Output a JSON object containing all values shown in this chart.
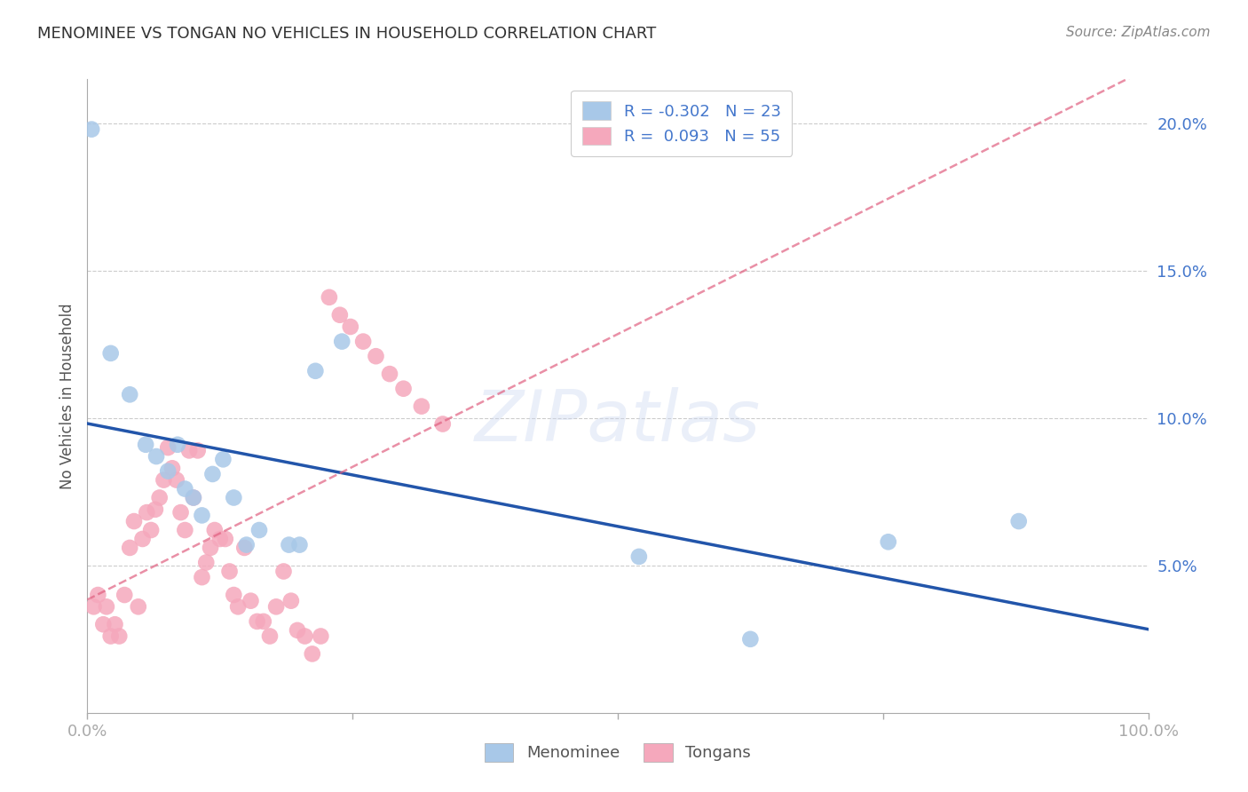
{
  "title": "MENOMINEE VS TONGAN NO VEHICLES IN HOUSEHOLD CORRELATION CHART",
  "source": "Source: ZipAtlas.com",
  "ylabel": "No Vehicles in Household",
  "xlim": [
    0.0,
    1.0
  ],
  "ylim": [
    0.0,
    0.215
  ],
  "yticks": [
    0.05,
    0.1,
    0.15,
    0.2
  ],
  "ytick_labels": [
    "5.0%",
    "10.0%",
    "15.0%",
    "20.0%"
  ],
  "xticks": [
    0.0,
    0.25,
    0.5,
    0.75,
    1.0
  ],
  "xtick_labels": [
    "0.0%",
    "",
    "",
    "",
    "100.0%"
  ],
  "menominee_R": -0.302,
  "menominee_N": 23,
  "tongan_R": 0.093,
  "tongan_N": 55,
  "menominee_color": "#a8c8e8",
  "tongan_color": "#f5a8bc",
  "menominee_line_color": "#2255aa",
  "tongan_line_color": "#e06080",
  "menominee_x": [
    0.004,
    0.022,
    0.04,
    0.055,
    0.065,
    0.076,
    0.085,
    0.092,
    0.1,
    0.108,
    0.118,
    0.128,
    0.138,
    0.15,
    0.162,
    0.19,
    0.2,
    0.215,
    0.24,
    0.52,
    0.625,
    0.755,
    0.878
  ],
  "menominee_y": [
    0.198,
    0.122,
    0.108,
    0.091,
    0.087,
    0.082,
    0.091,
    0.076,
    0.073,
    0.067,
    0.081,
    0.086,
    0.073,
    0.057,
    0.062,
    0.057,
    0.057,
    0.116,
    0.126,
    0.053,
    0.025,
    0.058,
    0.065
  ],
  "tongan_x": [
    0.006,
    0.01,
    0.015,
    0.018,
    0.022,
    0.026,
    0.03,
    0.035,
    0.04,
    0.044,
    0.048,
    0.052,
    0.056,
    0.06,
    0.064,
    0.068,
    0.072,
    0.076,
    0.08,
    0.084,
    0.088,
    0.092,
    0.096,
    0.1,
    0.104,
    0.108,
    0.112,
    0.116,
    0.12,
    0.125,
    0.13,
    0.134,
    0.138,
    0.142,
    0.148,
    0.154,
    0.16,
    0.166,
    0.172,
    0.178,
    0.185,
    0.192,
    0.198,
    0.205,
    0.212,
    0.22,
    0.228,
    0.238,
    0.248,
    0.26,
    0.272,
    0.285,
    0.298,
    0.315,
    0.335
  ],
  "tongan_y": [
    0.036,
    0.04,
    0.03,
    0.036,
    0.026,
    0.03,
    0.026,
    0.04,
    0.056,
    0.065,
    0.036,
    0.059,
    0.068,
    0.062,
    0.069,
    0.073,
    0.079,
    0.09,
    0.083,
    0.079,
    0.068,
    0.062,
    0.089,
    0.073,
    0.089,
    0.046,
    0.051,
    0.056,
    0.062,
    0.059,
    0.059,
    0.048,
    0.04,
    0.036,
    0.056,
    0.038,
    0.031,
    0.031,
    0.026,
    0.036,
    0.048,
    0.038,
    0.028,
    0.026,
    0.02,
    0.026,
    0.141,
    0.135,
    0.131,
    0.126,
    0.121,
    0.115,
    0.11,
    0.104,
    0.098
  ],
  "watermark": "ZIPatlas",
  "background_color": "#ffffff",
  "grid_color": "#cccccc"
}
